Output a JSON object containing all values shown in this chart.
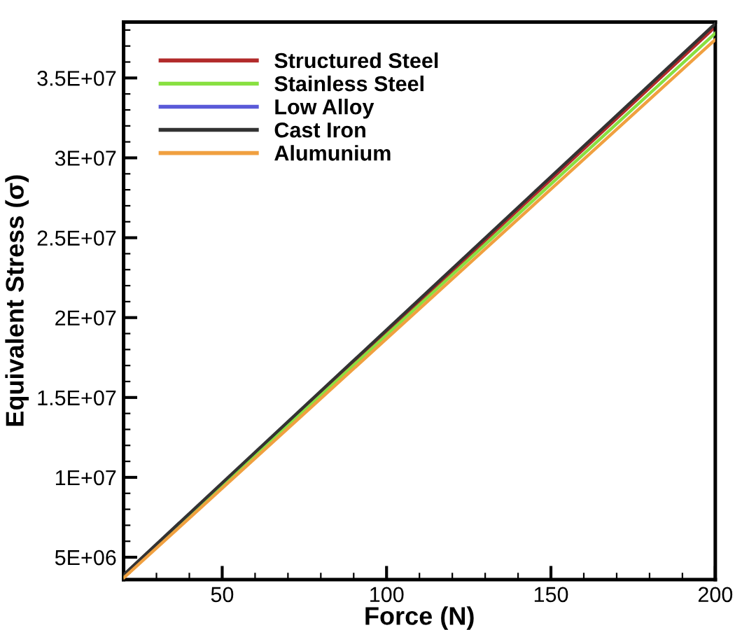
{
  "chart_data": {
    "type": "line",
    "xlabel": "Force (N)",
    "ylabel": "Equivalent Stress (σ)",
    "x": [
      20,
      200
    ],
    "series": [
      {
        "name": "Structured Steel",
        "color": "#b22a2a",
        "values": [
          3800000,
          38200000
        ]
      },
      {
        "name": "Stainless Steel",
        "color": "#88e040",
        "values": [
          3800000,
          37800000
        ]
      },
      {
        "name": "Low Alloy",
        "color": "#5a5ad8",
        "values": [
          null,
          null
        ]
      },
      {
        "name": "Cast Iron",
        "color": "#333333",
        "values": [
          3900000,
          38400000
        ]
      },
      {
        "name": "Alumunium",
        "color": "#f0a040",
        "values": [
          3700000,
          37400000
        ]
      }
    ],
    "xlim": [
      20,
      200
    ],
    "xticks": [
      50,
      100,
      150,
      200
    ],
    "ylim": [
      3600000,
      38500000
    ],
    "yticks": [
      {
        "value": 5000000,
        "label": "5E+06"
      },
      {
        "value": 10000000,
        "label": "1E+07"
      },
      {
        "value": 15000000,
        "label": "1.5E+07"
      },
      {
        "value": 20000000,
        "label": "2E+07"
      },
      {
        "value": 25000000,
        "label": "2.5E+07"
      },
      {
        "value": 30000000,
        "label": "3E+07"
      },
      {
        "value": 35000000,
        "label": "3.5E+07"
      }
    ],
    "grid": false,
    "legend": "top left",
    "marker": "none",
    "line_style": "solid"
  }
}
